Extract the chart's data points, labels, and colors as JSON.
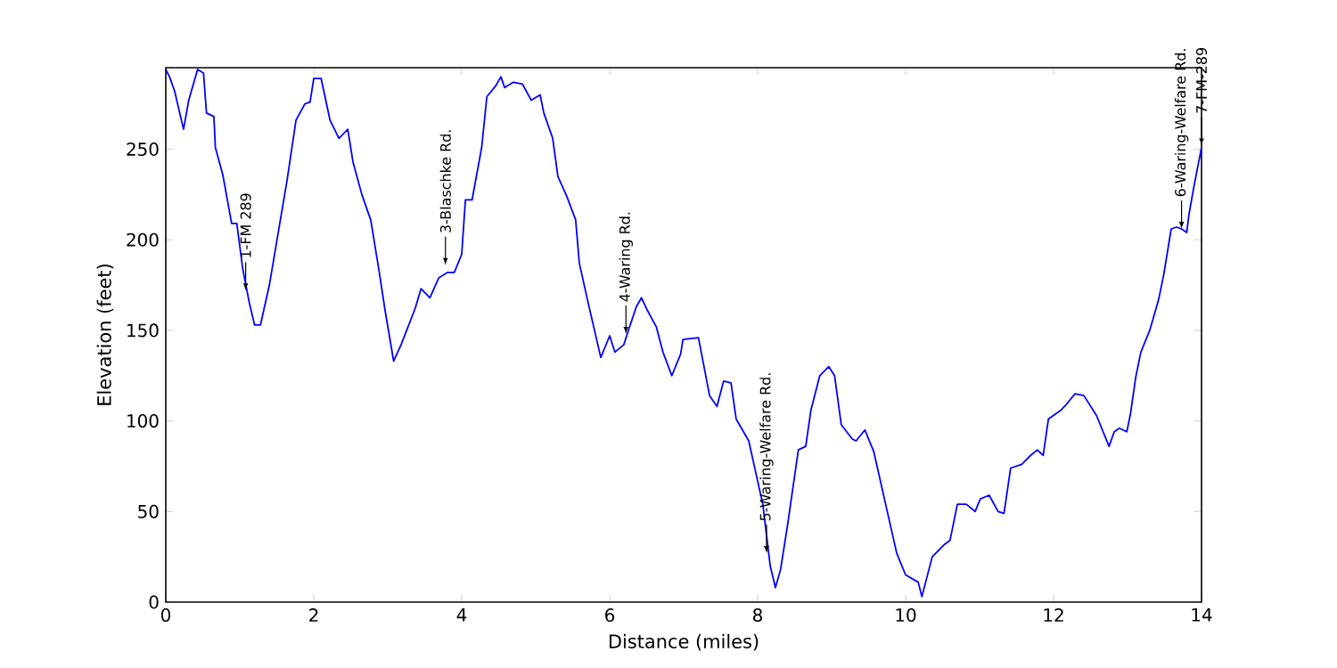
{
  "chart_data": {
    "type": "line",
    "xlabel": "Distance (miles)",
    "ylabel": "Elevation (feet)",
    "xlim": [
      0,
      14
    ],
    "ylim": [
      0,
      295
    ],
    "xticks": [
      0,
      2,
      4,
      6,
      8,
      10,
      12,
      14
    ],
    "yticks": [
      0,
      50,
      100,
      150,
      200,
      250
    ],
    "grid": false,
    "marker": "none",
    "line_style": "solid",
    "series": [
      {
        "color": "#0000ff",
        "x": [
          0,
          0.05,
          0.12,
          0.24,
          0.31,
          0.43,
          0.51,
          0.55,
          0.65,
          0.67,
          0.77,
          0.89,
          0.96,
          1.04,
          1.13,
          1.2,
          1.28,
          1.4,
          1.52,
          1.64,
          1.76,
          1.88,
          1.95,
          2.0,
          2.1,
          2.22,
          2.34,
          2.46,
          2.53,
          2.65,
          2.77,
          2.89,
          2.96,
          3.08,
          3.18,
          3.37,
          3.45,
          3.57,
          3.69,
          3.81,
          3.9,
          4.0,
          4.05,
          4.14,
          4.27,
          4.34,
          4.46,
          4.53,
          4.58,
          4.7,
          4.82,
          4.94,
          5.06,
          5.11,
          5.23,
          5.3,
          5.42,
          5.54,
          5.59,
          5.71,
          5.88,
          6.0,
          6.07,
          6.19,
          6.27,
          6.36,
          6.43,
          6.51,
          6.63,
          6.72,
          6.84,
          6.96,
          6.99,
          7.2,
          7.35,
          7.45,
          7.54,
          7.64,
          7.71,
          7.88,
          7.95,
          8.07,
          8.17,
          8.24,
          8.31,
          8.41,
          8.48,
          8.55,
          8.65,
          8.72,
          8.84,
          8.96,
          9.04,
          9.13,
          9.28,
          9.33,
          9.45,
          9.57,
          9.73,
          9.88,
          10.0,
          10.17,
          10.22,
          10.36,
          10.53,
          10.6,
          10.7,
          10.82,
          10.94,
          11.01,
          11.13,
          11.25,
          11.33,
          11.42,
          11.57,
          11.69,
          11.78,
          11.86,
          11.93,
          12.1,
          12.17,
          12.29,
          12.41,
          12.58,
          12.75,
          12.82,
          12.89,
          12.99,
          13.04,
          13.11,
          13.18,
          13.3,
          13.42,
          13.49,
          13.59,
          13.66,
          13.73,
          13.8,
          13.83,
          13.9,
          14.0
        ],
        "values": [
          294,
          290,
          282,
          261,
          277,
          294,
          292,
          270,
          268,
          251,
          236,
          209,
          209,
          184,
          165,
          153,
          153,
          175,
          204,
          233,
          266,
          275,
          276,
          289,
          289,
          266,
          256,
          261,
          243,
          225,
          211,
          181,
          162,
          133,
          142,
          162,
          173,
          168,
          179,
          182,
          182,
          192,
          222,
          222,
          251,
          279,
          285,
          290,
          284,
          287,
          286,
          277,
          280,
          270,
          256,
          235,
          224,
          211,
          187,
          165,
          135,
          147,
          138,
          142,
          152,
          163,
          168,
          161,
          152,
          138,
          125,
          137,
          145,
          146,
          114,
          108,
          122,
          121,
          101,
          89,
          76,
          54,
          20,
          8,
          18,
          44,
          64,
          84,
          86,
          106,
          125,
          130,
          125,
          98,
          90,
          89,
          95,
          83,
          54,
          27,
          15,
          11,
          3,
          25,
          32,
          34,
          54,
          54,
          50,
          57,
          59,
          50,
          49,
          74,
          76,
          81,
          84,
          81,
          101,
          106,
          109,
          115,
          114,
          103,
          86,
          94,
          96,
          94,
          104,
          124,
          138,
          150,
          167,
          181,
          206,
          207,
          206,
          204,
          214,
          230,
          251
        ]
      }
    ],
    "annotations": [
      {
        "text": "1-FM 289",
        "x": 1.08,
        "y": 172
      },
      {
        "text": "3-Blaschke Rd.",
        "x": 3.78,
        "y": 186
      },
      {
        "text": "4-Waring Rd.",
        "x": 6.22,
        "y": 148
      },
      {
        "text": "5-Waring-Welfare Rd.",
        "x": 8.12,
        "y": 27
      },
      {
        "text": "6-Waring-Welfare Rd.",
        "x": 13.73,
        "y": 206
      },
      {
        "text": "7-FM-289",
        "x": 14.0,
        "y": 252
      }
    ]
  }
}
